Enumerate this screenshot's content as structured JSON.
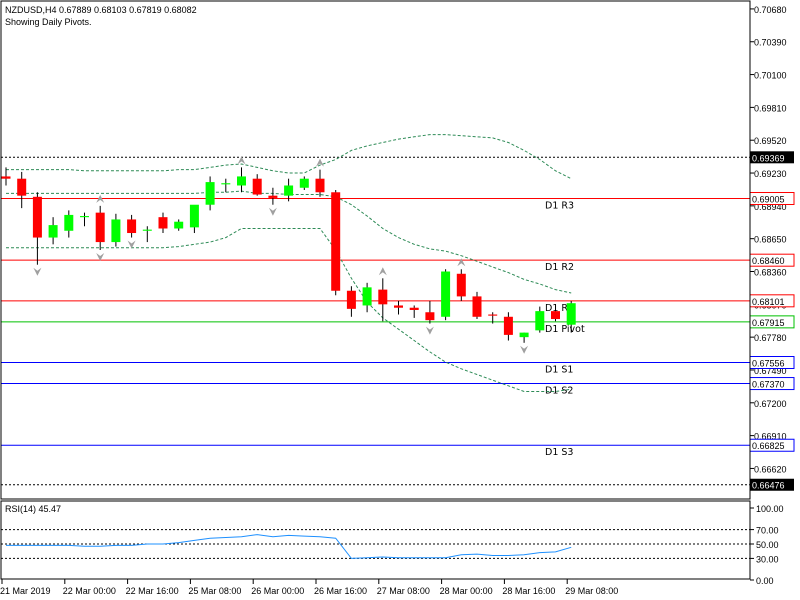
{
  "header": {
    "symbol_line": "NZDUSD,H4  0.67889 0.68103 0.67819 0.68082",
    "subtitle": "Showing Daily Pivots."
  },
  "rsi_panel": {
    "label": "RSI(14) 45.47",
    "axis_labels": [
      "100.00",
      "70.00",
      "50.00",
      "30.00",
      "0.00"
    ],
    "ticks": [
      100,
      70,
      50,
      30,
      0
    ],
    "levels": [
      70,
      50,
      30
    ]
  },
  "price_axis": {
    "labels": [
      "0.70680",
      "0.70390",
      "0.70100",
      "0.69810",
      "0.69520",
      "0.69230",
      "0.68940",
      "0.68650",
      "0.68360",
      "0.68070",
      "0.67780",
      "0.67490",
      "0.67200",
      "0.66910",
      "0.66620"
    ],
    "ticks": [
      0.7068,
      0.7039,
      0.701,
      0.6981,
      0.6952,
      0.6923,
      0.6894,
      0.6865,
      0.6836,
      0.6807,
      0.6778,
      0.6749,
      0.672,
      0.6691,
      0.6662
    ]
  },
  "time_axis": {
    "labels": [
      "21 Mar 2019",
      "22 Mar 00:00",
      "22 Mar 16:00",
      "25 Mar 08:00",
      "26 Mar 00:00",
      "26 Mar 16:00",
      "27 Mar 08:00",
      "28 Mar 00:00",
      "28 Mar 16:00",
      "29 Mar 08:00"
    ],
    "bar_index": [
      0,
      4,
      8,
      12,
      16,
      20,
      24,
      28,
      32,
      36
    ]
  },
  "pivots": [
    {
      "name": "D1 R3",
      "value": "0.69005",
      "color": "#ff0000"
    },
    {
      "name": "D1 R2",
      "value": "0.68460",
      "color": "#ff0000"
    },
    {
      "name": "D1 R1",
      "value": "0.68101",
      "color": "#ff0000"
    },
    {
      "name": "D1 Pivot",
      "value": "0.67915",
      "color": "#00c000"
    },
    {
      "name": "D1 S1",
      "value": "0.67556",
      "color": "#0000ff"
    },
    {
      "name": "D1 S2",
      "value": "0.67370",
      "color": "#0000ff"
    },
    {
      "name": "D1 S3",
      "value": "0.66825",
      "color": "#0000ff"
    }
  ],
  "dotted_levels": [
    {
      "value": "0.69369"
    },
    {
      "value": "0.66476"
    }
  ],
  "colors": {
    "bull": "#00ff00",
    "bear": "#ff0000",
    "band": "#2e8b57",
    "rsi_line": "#1e90ff",
    "frame": "#000000",
    "fractal": "#a0a0a0"
  },
  "chart_data": {
    "type": "candlestick",
    "symbol": "NZDUSD",
    "timeframe": "H4",
    "ylim": [
      0.6635,
      0.7075
    ],
    "candles": [
      {
        "o": 0.692,
        "h": 0.6928,
        "l": 0.6912,
        "c": 0.6918
      },
      {
        "o": 0.6918,
        "h": 0.6924,
        "l": 0.6892,
        "c": 0.6903
      },
      {
        "o": 0.6902,
        "h": 0.6906,
        "l": 0.6842,
        "c": 0.6866
      },
      {
        "o": 0.6866,
        "h": 0.6884,
        "l": 0.686,
        "c": 0.6877
      },
      {
        "o": 0.6872,
        "h": 0.689,
        "l": 0.6866,
        "c": 0.6886
      },
      {
        "o": 0.6884,
        "h": 0.6888,
        "l": 0.6876,
        "c": 0.6885
      },
      {
        "o": 0.6888,
        "h": 0.6894,
        "l": 0.6855,
        "c": 0.6862
      },
      {
        "o": 0.6862,
        "h": 0.6887,
        "l": 0.6858,
        "c": 0.6882
      },
      {
        "o": 0.6882,
        "h": 0.6886,
        "l": 0.6866,
        "c": 0.687
      },
      {
        "o": 0.6872,
        "h": 0.6876,
        "l": 0.6862,
        "c": 0.6873
      },
      {
        "o": 0.6884,
        "h": 0.6888,
        "l": 0.687,
        "c": 0.6874
      },
      {
        "o": 0.6874,
        "h": 0.6882,
        "l": 0.6872,
        "c": 0.688
      },
      {
        "o": 0.6875,
        "h": 0.6892,
        "l": 0.687,
        "c": 0.6895
      },
      {
        "o": 0.6895,
        "h": 0.692,
        "l": 0.689,
        "c": 0.6915
      },
      {
        "o": 0.6913,
        "h": 0.6918,
        "l": 0.6906,
        "c": 0.6914
      },
      {
        "o": 0.6912,
        "h": 0.6928,
        "l": 0.6906,
        "c": 0.692
      },
      {
        "o": 0.6918,
        "h": 0.6922,
        "l": 0.6903,
        "c": 0.6904
      },
      {
        "o": 0.6903,
        "h": 0.691,
        "l": 0.6895,
        "c": 0.6901
      },
      {
        "o": 0.6903,
        "h": 0.6918,
        "l": 0.6898,
        "c": 0.6912
      },
      {
        "o": 0.691,
        "h": 0.692,
        "l": 0.6908,
        "c": 0.6918
      },
      {
        "o": 0.6918,
        "h": 0.6926,
        "l": 0.6902,
        "c": 0.6906
      },
      {
        "o": 0.6906,
        "h": 0.6908,
        "l": 0.6815,
        "c": 0.6819
      },
      {
        "o": 0.6819,
        "h": 0.6823,
        "l": 0.6796,
        "c": 0.6803
      },
      {
        "o": 0.6806,
        "h": 0.6826,
        "l": 0.68,
        "c": 0.6822
      },
      {
        "o": 0.682,
        "h": 0.683,
        "l": 0.6792,
        "c": 0.6807
      },
      {
        "o": 0.6806,
        "h": 0.681,
        "l": 0.6798,
        "c": 0.6804
      },
      {
        "o": 0.6804,
        "h": 0.6806,
        "l": 0.6795,
        "c": 0.6802
      },
      {
        "o": 0.68,
        "h": 0.681,
        "l": 0.679,
        "c": 0.6793
      },
      {
        "o": 0.6796,
        "h": 0.6838,
        "l": 0.6793,
        "c": 0.6836
      },
      {
        "o": 0.6834,
        "h": 0.6838,
        "l": 0.681,
        "c": 0.6814
      },
      {
        "o": 0.6814,
        "h": 0.6818,
        "l": 0.6794,
        "c": 0.6796
      },
      {
        "o": 0.6798,
        "h": 0.68,
        "l": 0.679,
        "c": 0.6797
      },
      {
        "o": 0.6796,
        "h": 0.68,
        "l": 0.6775,
        "c": 0.678
      },
      {
        "o": 0.6778,
        "h": 0.6782,
        "l": 0.6773,
        "c": 0.6782
      },
      {
        "o": 0.6784,
        "h": 0.6805,
        "l": 0.6782,
        "c": 0.6801
      },
      {
        "o": 0.6801,
        "h": 0.6806,
        "l": 0.6792,
        "c": 0.6794
      },
      {
        "o": 0.6789,
        "h": 0.681,
        "l": 0.6782,
        "c": 0.6808
      }
    ],
    "bollinger_upper": [
      0.6926,
      0.6926,
      0.6926,
      0.6926,
      0.6926,
      0.6925,
      0.6925,
      0.6925,
      0.6925,
      0.6925,
      0.6925,
      0.6926,
      0.6926,
      0.6928,
      0.693,
      0.6931,
      0.6928,
      0.6925,
      0.6923,
      0.6923,
      0.693,
      0.6935,
      0.6943,
      0.6947,
      0.695,
      0.6953,
      0.6955,
      0.6957,
      0.6957,
      0.6956,
      0.6955,
      0.6954,
      0.695,
      0.6943,
      0.6935,
      0.6925,
      0.6918
    ],
    "bollinger_middle": [
      0.6905,
      0.6905,
      0.6905,
      0.6905,
      0.6905,
      0.6905,
      0.6905,
      0.6905,
      0.6905,
      0.6905,
      0.6905,
      0.6905,
      0.6905,
      0.6906,
      0.6906,
      0.6907,
      0.6905,
      0.6905,
      0.6904,
      0.6904,
      0.6904,
      0.6902,
      0.6895,
      0.6885,
      0.6874,
      0.6866,
      0.686,
      0.6856,
      0.6854,
      0.685,
      0.6845,
      0.684,
      0.6835,
      0.6829,
      0.6825,
      0.682,
      0.6817
    ],
    "bollinger_lower": [
      0.6857,
      0.6857,
      0.6857,
      0.6857,
      0.6857,
      0.6857,
      0.6857,
      0.6857,
      0.6857,
      0.6857,
      0.6857,
      0.6858,
      0.686,
      0.6862,
      0.6866,
      0.6874,
      0.6874,
      0.6874,
      0.6874,
      0.6874,
      0.6874,
      0.6855,
      0.683,
      0.6809,
      0.6795,
      0.6785,
      0.6775,
      0.6765,
      0.6756,
      0.675,
      0.6745,
      0.674,
      0.6735,
      0.673,
      0.673,
      0.673,
      0.6732
    ],
    "fractals_up": [
      6,
      15,
      20,
      24,
      29
    ],
    "fractals_down": [
      2,
      6,
      8,
      17,
      27,
      33
    ],
    "rsi": [
      48,
      48,
      48,
      48,
      48,
      47,
      47,
      48,
      48,
      50,
      50,
      52,
      55,
      58,
      59,
      60,
      63,
      60,
      62,
      61,
      60,
      58,
      30,
      31,
      32,
      31,
      31,
      31,
      31,
      35,
      36,
      34,
      34,
      35,
      38,
      39,
      45.47
    ]
  }
}
